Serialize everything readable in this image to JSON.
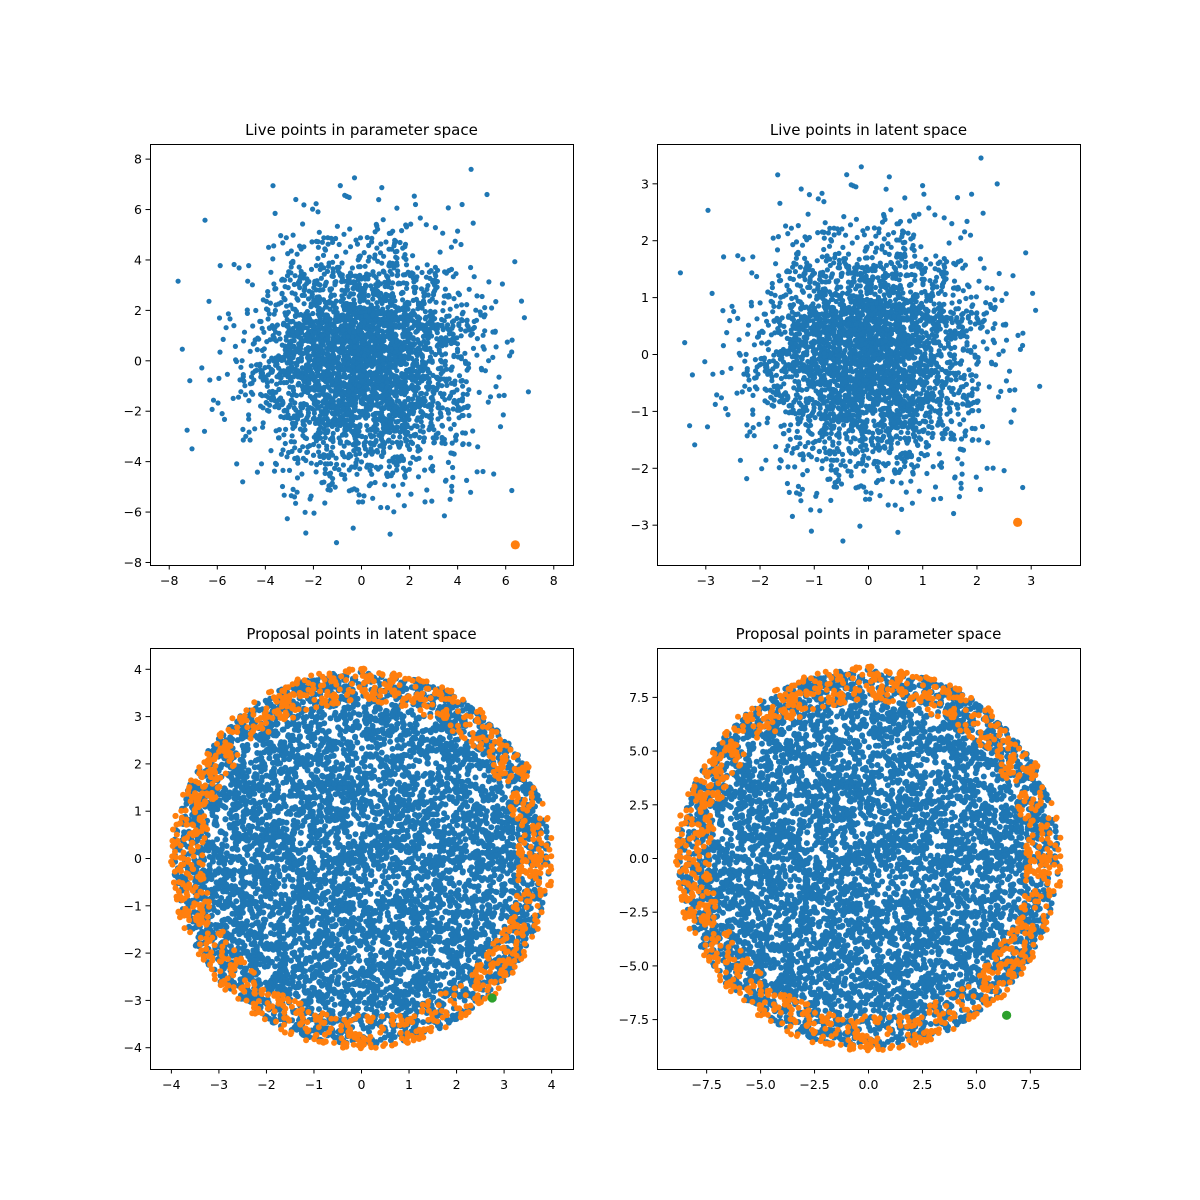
{
  "colors": {
    "live": "#1f77b4",
    "proposal_inside": "#1f77b4",
    "proposal_rejected": "#ff7f0e",
    "highlight_orange": "#ff7f0e",
    "highlight_green": "#2ca02c"
  },
  "chart_data": [
    {
      "type": "scatter",
      "title": "Live points in parameter space",
      "xlabel": "",
      "ylabel": "",
      "xlim": [
        -8.8,
        8.8
      ],
      "ylim": [
        -8.1,
        8.6
      ],
      "xticks": [
        -8,
        -6,
        -4,
        -2,
        0,
        2,
        4,
        6,
        8
      ],
      "xtick_labels": [
        "−8",
        "−6",
        "−4",
        "−2",
        "0",
        "2",
        "4",
        "6",
        "8"
      ],
      "yticks": [
        -8,
        -6,
        -4,
        -2,
        0,
        2,
        4,
        6,
        8
      ],
      "ytick_labels": [
        "−8",
        "−6",
        "−4",
        "−2",
        "0",
        "2",
        "4",
        "6",
        "8"
      ],
      "grid": false,
      "series": [
        {
          "kind": "gaussian_cloud",
          "color": "#1f77b4",
          "n": 3500,
          "sigma": 2.2,
          "extent": 8.0,
          "seed": 11
        },
        {
          "kind": "highlight",
          "color": "#ff7f0e",
          "x": [
            6.4
          ],
          "y": [
            -7.3
          ]
        }
      ]
    },
    {
      "type": "scatter",
      "title": "Live points in latent space",
      "xlabel": "",
      "ylabel": "",
      "xlim": [
        -3.9,
        3.9
      ],
      "ylim": [
        -3.7,
        3.7
      ],
      "xticks": [
        -3,
        -2,
        -1,
        0,
        1,
        2,
        3
      ],
      "xtick_labels": [
        "−3",
        "−2",
        "−1",
        "0",
        "1",
        "2",
        "3"
      ],
      "yticks": [
        -3,
        -2,
        -1,
        0,
        1,
        2,
        3
      ],
      "ytick_labels": [
        "−3",
        "−2",
        "−1",
        "0",
        "1",
        "2",
        "3"
      ],
      "grid": false,
      "series": [
        {
          "kind": "gaussian_cloud",
          "color": "#1f77b4",
          "n": 3500,
          "sigma": 1.0,
          "extent": 3.6,
          "seed": 11
        },
        {
          "kind": "highlight",
          "color": "#ff7f0e",
          "x": [
            2.75
          ],
          "y": [
            -2.95
          ]
        }
      ]
    },
    {
      "type": "scatter",
      "title": "Proposal points in latent space",
      "xlabel": "",
      "ylabel": "",
      "xlim": [
        -4.45,
        4.45
      ],
      "ylim": [
        -4.45,
        4.45
      ],
      "xticks": [
        -4,
        -3,
        -2,
        -1,
        0,
        1,
        2,
        3,
        4
      ],
      "xtick_labels": [
        "−4",
        "−3",
        "−2",
        "−1",
        "0",
        "1",
        "2",
        "3",
        "4"
      ],
      "yticks": [
        -4,
        -3,
        -2,
        -1,
        0,
        1,
        2,
        3,
        4
      ],
      "ytick_labels": [
        "−4",
        "−3",
        "−2",
        "−1",
        "0",
        "1",
        "2",
        "3",
        "4"
      ],
      "grid": false,
      "series": [
        {
          "kind": "uniform_disk",
          "color": "#1f77b4",
          "n": 6000,
          "radius": 3.95,
          "seed": 7
        },
        {
          "kind": "ring",
          "color": "#ff7f0e",
          "n": 1100,
          "r_min": 3.3,
          "r_max": 4.02,
          "seed": 29
        },
        {
          "kind": "highlight",
          "color": "#2ca02c",
          "x": [
            2.75
          ],
          "y": [
            -2.95
          ]
        }
      ]
    },
    {
      "type": "scatter",
      "title": "Proposal points in parameter space",
      "xlabel": "",
      "ylabel": "",
      "xlim": [
        -9.8,
        9.8
      ],
      "ylim": [
        -9.8,
        9.8
      ],
      "xticks": [
        -7.5,
        -5.0,
        -2.5,
        0.0,
        2.5,
        5.0,
        7.5
      ],
      "xtick_labels": [
        "−7.5",
        "−5.0",
        "−2.5",
        "0.0",
        "2.5",
        "5.0",
        "7.5"
      ],
      "yticks": [
        -7.5,
        -5.0,
        -2.5,
        0.0,
        2.5,
        5.0,
        7.5
      ],
      "ytick_labels": [
        "−7.5",
        "−5.0",
        "−2.5",
        "0.0",
        "2.5",
        "5.0",
        "7.5"
      ],
      "grid": false,
      "series": [
        {
          "kind": "uniform_disk",
          "color": "#1f77b4",
          "n": 6000,
          "radius": 8.8,
          "seed": 7
        },
        {
          "kind": "ring",
          "color": "#ff7f0e",
          "n": 1100,
          "r_min": 7.3,
          "r_max": 8.95,
          "seed": 29
        },
        {
          "kind": "highlight",
          "color": "#2ca02c",
          "x": [
            6.4
          ],
          "y": [
            -7.3
          ]
        }
      ]
    }
  ]
}
